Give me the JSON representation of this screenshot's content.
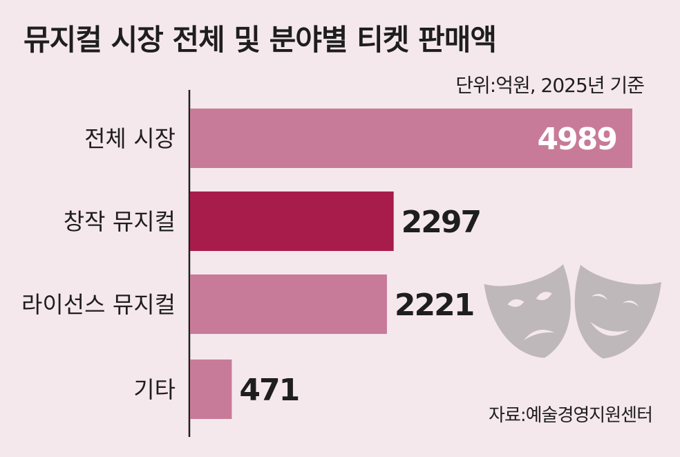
{
  "chart_data": {
    "type": "bar",
    "orientation": "horizontal",
    "title": "뮤지컬 시장 전체 및 분야별 티켓 판매액",
    "unit_note": "단위:억원, 2025년 기준",
    "source": "자료:예술경영지원센터",
    "categories": [
      "전체 시장",
      "창작 뮤지컬",
      "라이선스 뮤지컬",
      "기타"
    ],
    "values": [
      4989,
      2297,
      2221,
      471
    ],
    "value_labels": [
      "4989",
      "2297",
      "2221",
      "471"
    ],
    "xlim": [
      0,
      5000
    ],
    "grid": false,
    "colors": {
      "bar": "#c87b98",
      "highlight": "#a81c4b",
      "axis": "#1e1e1e",
      "mask": "#bfb8bb"
    },
    "highlight_index": 1,
    "decoration": "theater-masks-icon"
  }
}
